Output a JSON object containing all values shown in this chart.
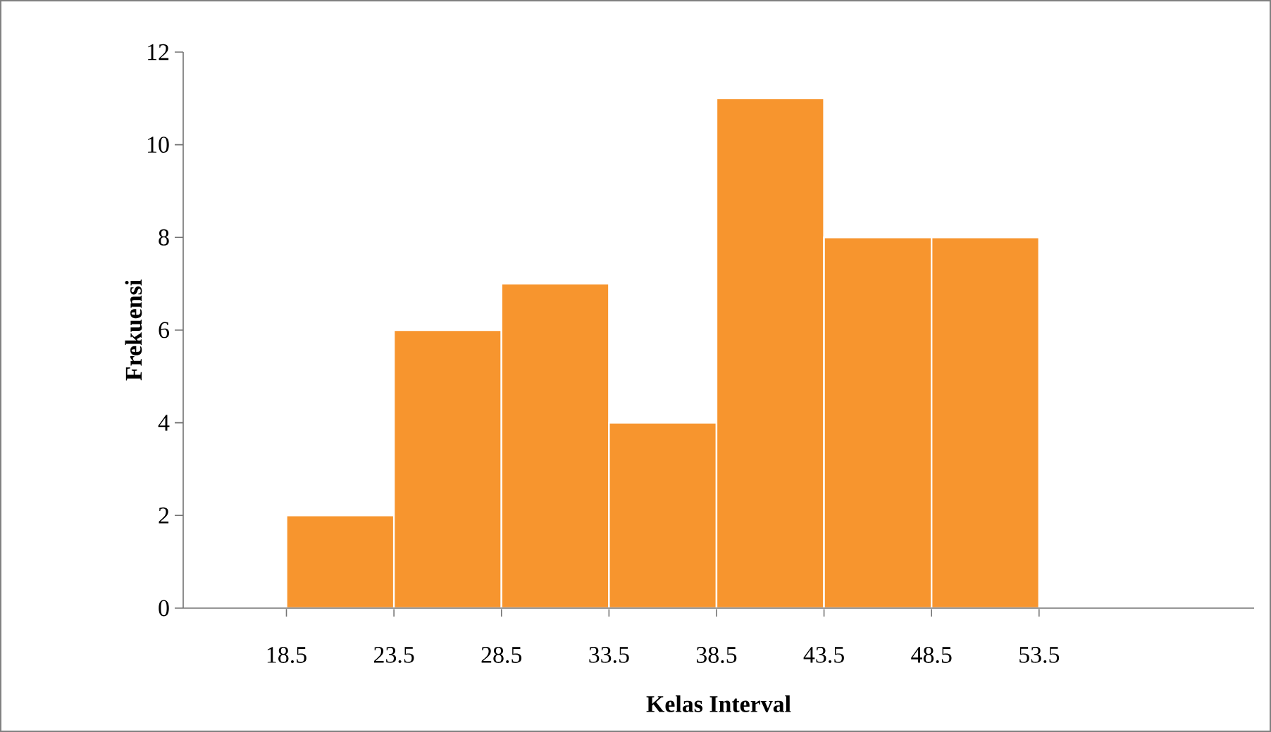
{
  "chart_data": {
    "type": "histogram",
    "xlabel": "Kelas Interval",
    "ylabel": "Frekuensi",
    "bins": [
      18.5,
      23.5,
      28.5,
      33.5,
      38.5,
      43.5,
      48.5,
      53.5
    ],
    "values": [
      2,
      6,
      7,
      4,
      11,
      8,
      8
    ],
    "color": "#f7952e",
    "xlim": [
      13.7,
      63.5
    ],
    "xticks": [
      18.5,
      23.5,
      28.5,
      33.5,
      38.5,
      43.5,
      48.5,
      53.5
    ],
    "ylim": [
      0,
      12
    ],
    "yticks": [
      0,
      2,
      4,
      6,
      8,
      10,
      12
    ],
    "grid": false
  }
}
